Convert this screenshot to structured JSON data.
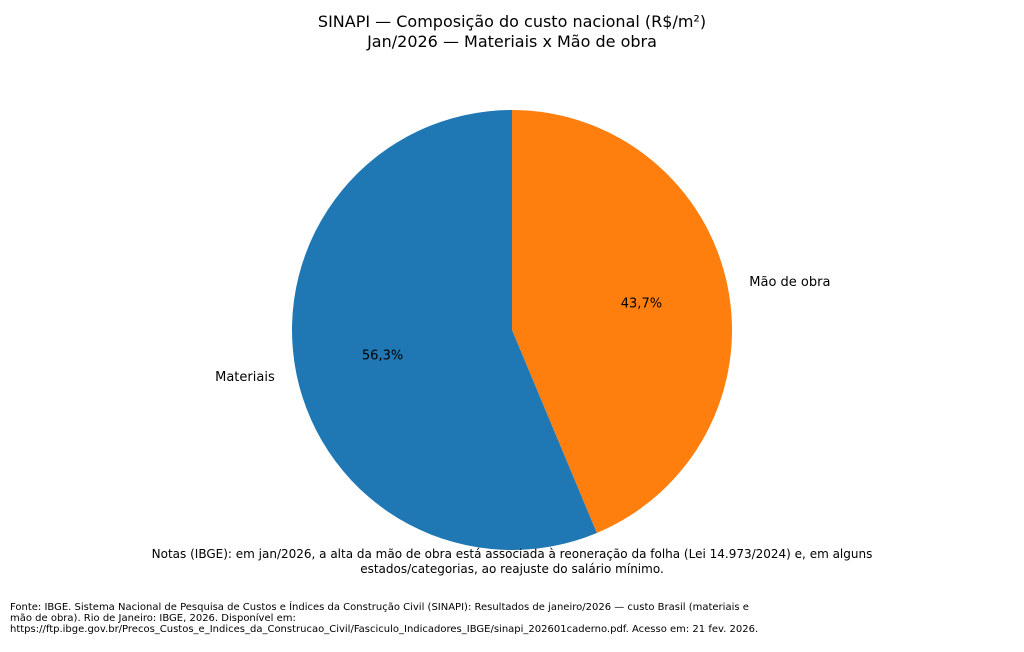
{
  "chart_data": {
    "type": "pie",
    "title": "SINAPI — Composição do custo nacional (R$/m²)",
    "subtitle": "Jan/2026 — Materiais x Mão de obra",
    "slices": [
      {
        "label": "Mão de obra",
        "value": 43.7,
        "pct_label": "43,7%",
        "color": "#ff7f0e"
      },
      {
        "label": "Materiais",
        "value": 56.3,
        "pct_label": "56,3%",
        "color": "#1f77b4"
      }
    ],
    "start_angle_deg": 90,
    "direction": "clockwise"
  },
  "notes": "Notas (IBGE): em jan/2026, a alta da mão de obra está associada à reoneração da folha (Lei 14.973/2024) e, em alguns estados/categorias, ao reajuste do salário mínimo.",
  "source": "Fonte: IBGE. Sistema Nacional de Pesquisa de Custos e Índices da Construção Civil (SINAPI): Resultados de janeiro/2026 — custo Brasil (materiais e mão de obra). Rio de Janeiro: IBGE, 2026. Disponível em: https://ftp.ibge.gov.br/Precos_Custos_e_Indices_da_Construcao_Civil/Fasciculo_Indicadores_IBGE/sinapi_202601caderno.pdf. Acesso em: 21 fev. 2026."
}
